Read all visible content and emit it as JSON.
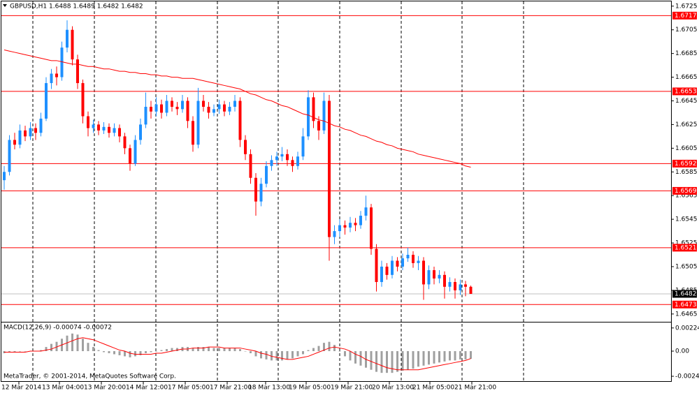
{
  "chart_data": {
    "type": "candlestick",
    "title": "GBPUSD,H1  1.6488 1.6489 1.6482 1.6482",
    "bull_color": "#1e90ff",
    "bear_color": "#ff0000",
    "ylim": [
      1.6459,
      1.6729
    ],
    "yticks": [
      1.6725,
      1.6705,
      1.6685,
      1.6665,
      1.6645,
      1.6625,
      1.6605,
      1.6585,
      1.6565,
      1.6545,
      1.6525,
      1.6505,
      1.6485,
      1.6465
    ],
    "candles": [
      [
        1.6578,
        1.659,
        1.657,
        1.6585
      ],
      [
        1.6585,
        1.6616,
        1.6582,
        1.6612
      ],
      [
        1.6612,
        1.6618,
        1.6604,
        1.6608
      ],
      [
        1.6608,
        1.6625,
        1.6605,
        1.662
      ],
      [
        1.662,
        1.6624,
        1.6611,
        1.6615
      ],
      [
        1.6615,
        1.6627,
        1.6612,
        1.6622
      ],
      [
        1.6622,
        1.6626,
        1.6612,
        1.6618
      ],
      [
        1.6618,
        1.6635,
        1.6615,
        1.663
      ],
      [
        1.663,
        1.6665,
        1.6628,
        1.666
      ],
      [
        1.666,
        1.6672,
        1.6655,
        1.6668
      ],
      [
        1.6668,
        1.6674,
        1.6658,
        1.6665
      ],
      [
        1.6665,
        1.6695,
        1.6662,
        1.669
      ],
      [
        1.669,
        1.6713,
        1.6686,
        1.6705
      ],
      [
        1.6705,
        1.6708,
        1.6675,
        1.668
      ],
      [
        1.668,
        1.6684,
        1.6655,
        1.666
      ],
      [
        1.666,
        1.6663,
        1.6626,
        1.6632
      ],
      [
        1.6632,
        1.6636,
        1.6615,
        1.6622
      ],
      [
        1.6622,
        1.6629,
        1.6618,
        1.6625
      ],
      [
        1.6625,
        1.6628,
        1.6616,
        1.662
      ],
      [
        1.662,
        1.6627,
        1.6617,
        1.6623
      ],
      [
        1.6623,
        1.6626,
        1.6614,
        1.6618
      ],
      [
        1.6618,
        1.6626,
        1.6615,
        1.6622
      ],
      [
        1.6622,
        1.6625,
        1.661,
        1.6615
      ],
      [
        1.6615,
        1.6618,
        1.66,
        1.6605
      ],
      [
        1.6605,
        1.6608,
        1.6586,
        1.6592
      ],
      [
        1.6592,
        1.6616,
        1.659,
        1.6612
      ],
      [
        1.6612,
        1.663,
        1.6608,
        1.6625
      ],
      [
        1.6625,
        1.6652,
        1.6622,
        1.664
      ],
      [
        1.664,
        1.6645,
        1.663,
        1.6636
      ],
      [
        1.6636,
        1.6648,
        1.6632,
        1.6642
      ],
      [
        1.6642,
        1.6646,
        1.663,
        1.6635
      ],
      [
        1.6635,
        1.665,
        1.6632,
        1.6645
      ],
      [
        1.6645,
        1.6648,
        1.6636,
        1.664
      ],
      [
        1.664,
        1.6644,
        1.6633,
        1.6638
      ],
      [
        1.6638,
        1.665,
        1.6635,
        1.6645
      ],
      [
        1.6645,
        1.6648,
        1.6622,
        1.6628
      ],
      [
        1.6628,
        1.6632,
        1.6602,
        1.6608
      ],
      [
        1.6608,
        1.6656,
        1.6605,
        1.6645
      ],
      [
        1.6645,
        1.665,
        1.6636,
        1.664
      ],
      [
        1.664,
        1.6644,
        1.663,
        1.6635
      ],
      [
        1.6635,
        1.6642,
        1.6632,
        1.6638
      ],
      [
        1.6638,
        1.6646,
        1.6634,
        1.6642
      ],
      [
        1.6642,
        1.6645,
        1.6632,
        1.6636
      ],
      [
        1.6636,
        1.6644,
        1.6633,
        1.664
      ],
      [
        1.664,
        1.665,
        1.6636,
        1.6645
      ],
      [
        1.6645,
        1.6648,
        1.6606,
        1.6612
      ],
      [
        1.6612,
        1.6616,
        1.6595,
        1.66
      ],
      [
        1.66,
        1.6604,
        1.6575,
        1.658
      ],
      [
        1.658,
        1.6584,
        1.6548,
        1.656
      ],
      [
        1.656,
        1.658,
        1.6556,
        1.6575
      ],
      [
        1.6575,
        1.6594,
        1.6572,
        1.659
      ],
      [
        1.659,
        1.6599,
        1.6586,
        1.6595
      ],
      [
        1.6595,
        1.6602,
        1.659,
        1.6598
      ],
      [
        1.6598,
        1.6606,
        1.6594,
        1.66
      ],
      [
        1.66,
        1.6604,
        1.659,
        1.6595
      ],
      [
        1.6595,
        1.6598,
        1.6585,
        1.659
      ],
      [
        1.659,
        1.6602,
        1.6587,
        1.6598
      ],
      [
        1.6598,
        1.6622,
        1.6595,
        1.6615
      ],
      [
        1.6615,
        1.6654,
        1.6612,
        1.6648
      ],
      [
        1.6648,
        1.6652,
        1.6622,
        1.6628
      ],
      [
        1.6628,
        1.6632,
        1.6612,
        1.662
      ],
      [
        1.662,
        1.6652,
        1.6617,
        1.6645
      ],
      [
        1.6645,
        1.665,
        1.651,
        1.653
      ],
      [
        1.653,
        1.654,
        1.6524,
        1.6535
      ],
      [
        1.6535,
        1.6545,
        1.653,
        1.654
      ],
      [
        1.654,
        1.6544,
        1.6532,
        1.6538
      ],
      [
        1.6538,
        1.6547,
        1.6534,
        1.6542
      ],
      [
        1.6542,
        1.6546,
        1.6535,
        1.654
      ],
      [
        1.654,
        1.6552,
        1.6537,
        1.6548
      ],
      [
        1.6548,
        1.6565,
        1.6544,
        1.6555
      ],
      [
        1.6555,
        1.6558,
        1.6515,
        1.652
      ],
      [
        1.652,
        1.6524,
        1.6484,
        1.6492
      ],
      [
        1.6492,
        1.651,
        1.6488,
        1.6505
      ],
      [
        1.6505,
        1.6508,
        1.6494,
        1.6498
      ],
      [
        1.6498,
        1.6514,
        1.6495,
        1.651
      ],
      [
        1.651,
        1.6513,
        1.6501,
        1.6505
      ],
      [
        1.6505,
        1.6516,
        1.6502,
        1.6512
      ],
      [
        1.6512,
        1.6521,
        1.6509,
        1.6515
      ],
      [
        1.6515,
        1.6518,
        1.6504,
        1.6508
      ],
      [
        1.6508,
        1.6514,
        1.6502,
        1.651
      ],
      [
        1.651,
        1.6513,
        1.6477,
        1.649
      ],
      [
        1.649,
        1.6506,
        1.6486,
        1.6502
      ],
      [
        1.6502,
        1.6505,
        1.649,
        1.6495
      ],
      [
        1.6495,
        1.6502,
        1.6491,
        1.6498
      ],
      [
        1.6498,
        1.6501,
        1.6478,
        1.6488
      ],
      [
        1.6488,
        1.6496,
        1.6484,
        1.6492
      ],
      [
        1.6492,
        1.6495,
        1.6478,
        1.6485
      ],
      [
        1.6485,
        1.6494,
        1.6481,
        1.649
      ],
      [
        1.649,
        1.6493,
        1.648,
        1.6488
      ],
      [
        1.6488,
        1.6489,
        1.6482,
        1.6482
      ]
    ],
    "ma": {
      "color": "#ff0000",
      "values": [
        1.6688,
        1.6687,
        1.6686,
        1.6685,
        1.6684,
        1.6683,
        1.6682,
        1.6681,
        1.668,
        1.6679,
        1.6679,
        1.6678,
        1.6677,
        1.6676,
        1.6676,
        1.6675,
        1.6674,
        1.6674,
        1.6673,
        1.6672,
        1.6672,
        1.6671,
        1.667,
        1.667,
        1.6669,
        1.6669,
        1.6668,
        1.6668,
        1.6667,
        1.6667,
        1.6666,
        1.6666,
        1.6665,
        1.6665,
        1.6664,
        1.6664,
        1.6664,
        1.6663,
        1.6662,
        1.6661,
        1.666,
        1.6659,
        1.6658,
        1.6657,
        1.6656,
        1.6655,
        1.6653,
        1.6651,
        1.665,
        1.6648,
        1.6646,
        1.6645,
        1.6643,
        1.6641,
        1.664,
        1.6638,
        1.6636,
        1.6634,
        1.6633,
        1.6631,
        1.6629,
        1.6628,
        1.6626,
        1.6624,
        1.6623,
        1.6621,
        1.662,
        1.6618,
        1.6616,
        1.6615,
        1.6613,
        1.6611,
        1.661,
        1.6608,
        1.6607,
        1.6605,
        1.6604,
        1.6603,
        1.6602,
        1.66,
        1.6599,
        1.6598,
        1.6597,
        1.6596,
        1.6595,
        1.6594,
        1.6593,
        1.6592,
        1.659,
        1.6589
      ]
    },
    "levels": {
      "color": "#ff0000",
      "values": [
        1.6717,
        1.6653,
        1.6592,
        1.6569,
        1.6521,
        1.6473
      ]
    },
    "current_price": 1.6482,
    "x_labels": [
      "12 Mar 2014",
      "13 Mar 04:00",
      "13 Mar 20:00",
      "14 Mar 12:00",
      "17 Mar 05:00",
      "17 Mar 21:00",
      "18 Mar 13:00",
      "19 Mar 05:00",
      "19 Mar 21:00",
      "20 Mar 13:00",
      "21 Mar 05:00",
      "21 Mar 21:00"
    ],
    "macd": {
      "label": "MACD(12,26,9) -0.00074 -0.00072",
      "ylim": [
        -0.0029,
        0.0027
      ],
      "yticks": [
        0.00224,
        {
          "value": 0,
          "label": "0.00"
        },
        -0.00243
      ],
      "histogram_color": "#a0a0a0",
      "signal_color": "#ff0000",
      "histogram": [
        -0.0002,
        -0.0001,
        -0.0001,
        0,
        0,
        0,
        0,
        0.0001,
        0.0004,
        0.0007,
        0.0009,
        0.0012,
        0.0015,
        0.0017,
        0.0016,
        0.0012,
        0.0008,
        0.0004,
        0.0001,
        -0.0001,
        -0.0002,
        -0.0003,
        -0.0004,
        -0.0005,
        -0.0006,
        -0.0005,
        -0.0004,
        -0.0002,
        -0.0001,
        0,
        0.0001,
        0.0002,
        0.0003,
        0.0003,
        0.0004,
        0.0004,
        0.0003,
        0.0004,
        0.0004,
        0.0004,
        0.0003,
        0.0003,
        0.0003,
        0.0003,
        0.0003,
        0.0002,
        0,
        -0.0002,
        -0.0005,
        -0.0007,
        -0.0008,
        -0.0009,
        -0.0009,
        -0.0009,
        -0.0008,
        -0.0007,
        -0.0005,
        -0.0003,
        0.0001,
        0.0003,
        0.0005,
        0.0008,
        0.0009,
        0.0006,
        0,
        -0.0005,
        -0.0009,
        -0.0012,
        -0.0014,
        -0.0016,
        -0.0018,
        -0.002,
        -0.0021,
        -0.0021,
        -0.0021,
        -0.002,
        -0.0019,
        -0.0018,
        -0.0017,
        -0.0015,
        -0.0014,
        -0.0013,
        -0.0012,
        -0.0011,
        -0.001,
        -0.0009,
        -0.0009,
        -0.0008,
        -0.0008,
        -0.00074
      ],
      "signal": [
        -0.0001,
        -0.0001,
        -0.0001,
        -0.0001,
        -0.0001,
        0,
        0,
        0,
        0.0001,
        0.0002,
        0.0004,
        0.0006,
        0.0008,
        0.001,
        0.0012,
        0.0013,
        0.0012,
        0.0011,
        0.0009,
        0.0007,
        0.0005,
        0.0003,
        0.0001,
        0,
        -0.0002,
        -0.0003,
        -0.0003,
        -0.0003,
        -0.0003,
        -0.0002,
        -0.0002,
        -0.0001,
        0,
        0.0001,
        0.0002,
        0.0002,
        0.0003,
        0.0003,
        0.0003,
        0.0004,
        0.0004,
        0.0004,
        0.0003,
        0.0003,
        0.0003,
        0.0003,
        0.0002,
        0.0001,
        0,
        -0.0002,
        -0.0003,
        -0.0005,
        -0.0006,
        -0.0007,
        -0.0008,
        -0.0008,
        -0.0007,
        -0.0006,
        -0.0005,
        -0.0003,
        -0.0001,
        0.0001,
        0.0003,
        0.0004,
        0.0003,
        0.0002,
        0,
        -0.0003,
        -0.0005,
        -0.0008,
        -0.001,
        -0.0012,
        -0.0014,
        -0.0016,
        -0.0017,
        -0.0018,
        -0.0018,
        -0.0018,
        -0.0018,
        -0.0018,
        -0.0017,
        -0.0016,
        -0.0015,
        -0.0014,
        -0.0013,
        -0.0012,
        -0.0011,
        -0.001,
        -0.0009,
        -0.00072
      ]
    },
    "footer": "MetaTrader, © 2001-2014, MetaQuotes Software Corp."
  }
}
